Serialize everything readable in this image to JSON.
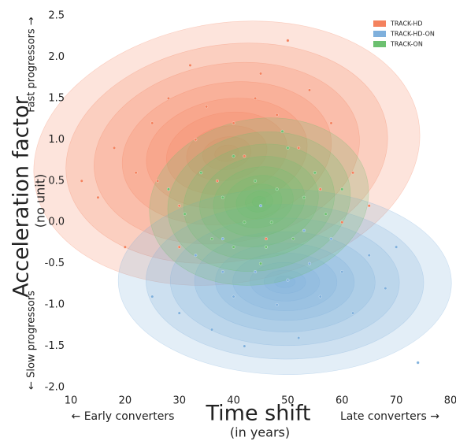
{
  "chart_data": {
    "type": "scatter",
    "x_label": "Time shift",
    "x_sublabel": "(in years)",
    "x_left_note": "← Early converters",
    "x_right_note": "Late converters →",
    "y_label": "Acceleration factor",
    "y_sublabel": "(no unit)",
    "y_top_note": "Fast progressors →",
    "y_bottom_note": "← Slow progressors",
    "xlim": [
      10,
      80
    ],
    "xticks": [
      10,
      20,
      30,
      40,
      50,
      60,
      70,
      80
    ],
    "ylim": [
      -2,
      2.5
    ],
    "yticks": [
      {
        "value": -2,
        "label": "-2.0"
      },
      -1.5,
      {
        "value": -1,
        "label": "-1.0"
      },
      -0.5,
      {
        "value": 0,
        "label": "0.0"
      },
      0.5,
      {
        "value": 1,
        "label": "1.0"
      },
      1.5,
      {
        "value": 2,
        "label": "2.0"
      },
      2.5
    ],
    "legend": "upper right",
    "density_contours": true,
    "series": [
      {
        "name": "TRACK-HD",
        "color": "#f4825e",
        "x": [
          12,
          15,
          18,
          20,
          22,
          25,
          28,
          30,
          32,
          33,
          35,
          37,
          40,
          42,
          44,
          46,
          48,
          50,
          52,
          54,
          56,
          58,
          60,
          62,
          65,
          30,
          26,
          45
        ],
        "y": [
          0.5,
          0.3,
          0.9,
          -0.3,
          0.6,
          1.2,
          1.5,
          0.2,
          1.9,
          1.0,
          1.4,
          0.5,
          1.2,
          0.8,
          1.5,
          -0.2,
          1.3,
          2.2,
          0.9,
          1.6,
          0.4,
          1.2,
          0.0,
          0.6,
          0.2,
          -0.3,
          0.5,
          1.8
        ]
      },
      {
        "name": "TRACK-HD-ON",
        "color": "#7fb0dc",
        "x": [
          25,
          30,
          33,
          36,
          38,
          40,
          42,
          44,
          46,
          48,
          50,
          52,
          54,
          56,
          58,
          60,
          62,
          65,
          68,
          70,
          45,
          38,
          53,
          74
        ],
        "y": [
          -0.9,
          -1.1,
          -0.4,
          -1.3,
          -0.2,
          -0.9,
          -1.5,
          -0.6,
          -0.3,
          -1.0,
          -0.7,
          -1.4,
          -0.5,
          -0.9,
          -0.2,
          -0.6,
          -1.1,
          -0.4,
          -0.8,
          -0.3,
          0.2,
          -0.6,
          -0.1,
          -1.7
        ]
      },
      {
        "name": "TRACK-ON",
        "color": "#6cc070",
        "x": [
          28,
          31,
          34,
          36,
          38,
          40,
          42,
          44,
          46,
          47,
          48,
          50,
          51,
          53,
          55,
          57,
          60,
          45,
          40,
          49
        ],
        "y": [
          0.4,
          0.1,
          0.6,
          -0.2,
          0.3,
          0.8,
          0.0,
          0.5,
          -0.3,
          0.0,
          0.4,
          0.9,
          -0.2,
          0.3,
          0.6,
          0.1,
          0.4,
          -0.5,
          -0.3,
          1.1
        ]
      }
    ]
  }
}
